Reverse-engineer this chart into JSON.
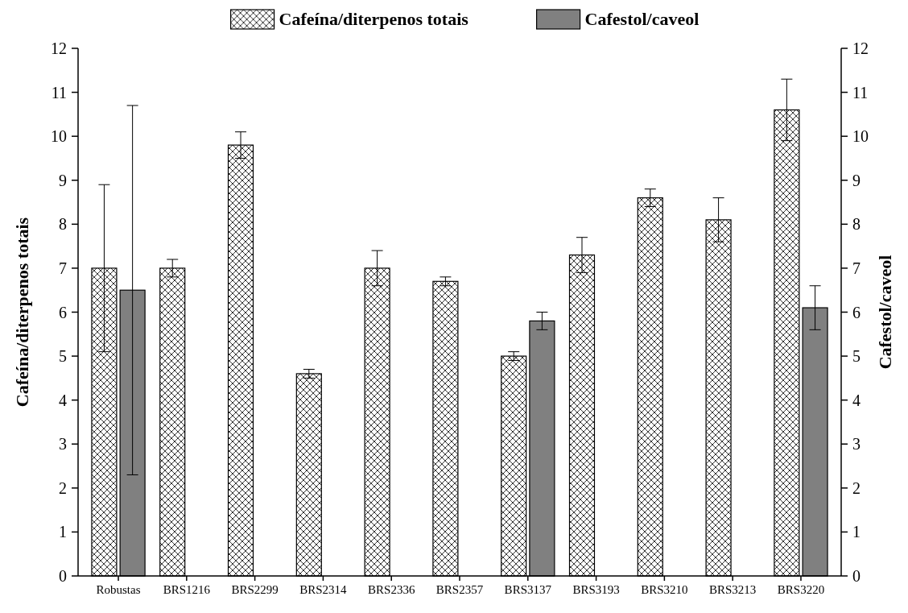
{
  "chart_data": {
    "type": "bar",
    "ylabel": "Cafeína/diterpenos totais",
    "y2label": "Cafestol/caveol",
    "categories": [
      "Robustas",
      "BRS1216",
      "BRS2299",
      "BRS2314",
      "BRS2336",
      "BRS2357",
      "BRS3137",
      "BRS3193",
      "BRS3210",
      "BRS3213",
      "BRS3220"
    ],
    "series": [
      {
        "name": "Cafeína/diterpenos totais",
        "color": "#000000",
        "values": [
          7,
          7,
          9.8,
          4.6,
          7,
          6.7,
          5,
          7.3,
          8.6,
          8.1,
          10.6
        ],
        "errors": [
          1.9,
          0.2,
          0.3,
          0.1,
          0.4,
          0.1,
          0.1,
          0.4,
          0.2,
          0.5,
          0.7
        ]
      },
      {
        "name": "Cafestol/caveol",
        "color": "#808080",
        "axis": "y2",
        "values": [
          6.5,
          null,
          null,
          null,
          null,
          null,
          5.8,
          null,
          null,
          null,
          6.1
        ],
        "errors": [
          4.2,
          null,
          null,
          null,
          null,
          null,
          0.2,
          null,
          null,
          null,
          0.5
        ]
      }
    ],
    "ylim": [
      0,
      12
    ],
    "yticks": [
      0,
      1,
      2,
      3,
      4,
      5,
      6,
      7,
      8,
      9,
      10,
      11,
      12
    ],
    "y2lim": [
      0,
      12
    ],
    "y2ticks": [
      0,
      1,
      2,
      3,
      4,
      5,
      6,
      7,
      8,
      9,
      10,
      11,
      12
    ],
    "legend": "top",
    "grid": false
  }
}
